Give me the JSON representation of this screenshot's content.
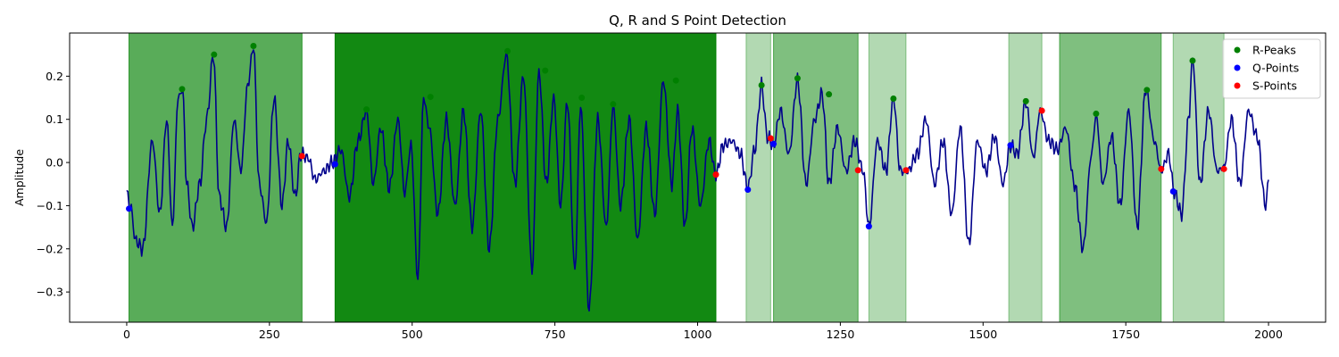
{
  "chart_data": {
    "type": "line",
    "title": "Q, R and S Point Detection",
    "xlabel": "",
    "ylabel": "Amplitude",
    "xlim": [
      -100,
      2100
    ],
    "ylim": [
      -0.37,
      0.3
    ],
    "x_ticks": [
      0,
      250,
      500,
      750,
      1000,
      1250,
      1500,
      1750,
      2000
    ],
    "y_ticks": [
      -0.3,
      -0.2,
      -0.1,
      0.0,
      0.1,
      0.2
    ],
    "y_tick_labels": [
      "−0.3",
      "−0.2",
      "−0.1",
      "0.0",
      "0.1",
      "0.2"
    ],
    "grid": false,
    "legend_position": "top-right",
    "colors": {
      "signal": "#00008b",
      "r_peaks": "#008000",
      "q_points": "#0000ff",
      "s_points": "#ff0000",
      "shade": "#008000"
    },
    "legend": [
      {
        "label": "R-Peaks",
        "color": "#008000"
      },
      {
        "label": "Q-Points",
        "color": "#0000ff"
      },
      {
        "label": "S-Points",
        "color": "#ff0000"
      }
    ],
    "shaded_regions": [
      {
        "x0": 4,
        "x1": 307,
        "opacity": 0.65
      },
      {
        "x0": 365,
        "x1": 1032,
        "opacity": 0.93
      },
      {
        "x0": 1085,
        "x1": 1128,
        "opacity": 0.3
      },
      {
        "x0": 1133,
        "x1": 1281,
        "opacity": 0.5
      },
      {
        "x0": 1300,
        "x1": 1365,
        "opacity": 0.3
      },
      {
        "x0": 1545,
        "x1": 1603,
        "opacity": 0.3
      },
      {
        "x0": 1634,
        "x1": 1812,
        "opacity": 0.5
      },
      {
        "x0": 1833,
        "x1": 1922,
        "opacity": 0.3
      }
    ],
    "signal_anchors": {
      "x": [
        0,
        8,
        15,
        28,
        45,
        58,
        70,
        80,
        90,
        98,
        105,
        115,
        128,
        140,
        152,
        162,
        175,
        188,
        200,
        212,
        222,
        232,
        245,
        258,
        272,
        283,
        295,
        305,
        318,
        330,
        345,
        360,
        375,
        390,
        405,
        420,
        432,
        445,
        460,
        475,
        487,
        498,
        510,
        520,
        530,
        545,
        560,
        575,
        590,
        605,
        620,
        635,
        650,
        665,
        680,
        695,
        710,
        722,
        735,
        748,
        760,
        772,
        785,
        795,
        810,
        825,
        840,
        852,
        865,
        880,
        895,
        910,
        925,
        940,
        955,
        965,
        978,
        990,
        1005,
        1020,
        1032,
        1045,
        1060,
        1075,
        1088,
        1100,
        1112,
        1122,
        1133,
        1145,
        1160,
        1175,
        1190,
        1205,
        1218,
        1230,
        1245,
        1260,
        1275,
        1290,
        1300,
        1315,
        1330,
        1343,
        1355,
        1368,
        1385,
        1400,
        1415,
        1430,
        1445,
        1460,
        1475,
        1490,
        1505,
        1520,
        1535,
        1548,
        1560,
        1575,
        1588,
        1600,
        1615,
        1630,
        1645,
        1660,
        1675,
        1690,
        1698,
        1710,
        1725,
        1740,
        1755,
        1770,
        1785,
        1800,
        1812,
        1825,
        1835,
        1848,
        1860,
        1867,
        1880,
        1895,
        1910,
        1922,
        1935,
        1950,
        1965,
        1980,
        1995,
        2000
      ],
      "y": [
        -0.07,
        -0.11,
        -0.18,
        -0.2,
        0.05,
        -0.12,
        0.1,
        -0.15,
        0.15,
        0.17,
        -0.05,
        -0.15,
        -0.05,
        0.1,
        0.25,
        -0.08,
        -0.15,
        0.1,
        -0.02,
        0.18,
        0.27,
        -0.05,
        -0.14,
        0.15,
        -0.1,
        0.05,
        -0.08,
        0.02,
        0.01,
        -0.04,
        -0.02,
        0.0,
        0.03,
        -0.08,
        0.05,
        0.12,
        -0.05,
        0.08,
        -0.06,
        0.1,
        -0.07,
        0.04,
        -0.27,
        0.15,
        0.08,
        -0.12,
        0.1,
        -0.1,
        0.12,
        -0.15,
        0.12,
        -0.2,
        0.1,
        0.25,
        -0.05,
        0.2,
        -0.25,
        0.21,
        -0.05,
        0.15,
        -0.1,
        0.14,
        -0.25,
        0.13,
        -0.34,
        0.1,
        -0.15,
        0.13,
        -0.1,
        0.1,
        -0.18,
        0.08,
        -0.12,
        0.19,
        -0.05,
        0.12,
        -0.15,
        0.08,
        -0.1,
        0.05,
        -0.03,
        0.04,
        0.05,
        0.02,
        -0.06,
        0.03,
        0.18,
        0.06,
        0.04,
        0.12,
        0.02,
        0.19,
        -0.05,
        0.1,
        0.16,
        -0.05,
        0.08,
        -0.02,
        0.05,
        -0.02,
        -0.15,
        0.05,
        -0.02,
        0.15,
        -0.02,
        -0.02,
        0.02,
        0.1,
        -0.05,
        0.05,
        -0.12,
        0.08,
        -0.19,
        0.05,
        -0.02,
        0.06,
        -0.05,
        0.04,
        0.02,
        0.14,
        0.01,
        0.12,
        0.05,
        0.03,
        0.08,
        -0.05,
        -0.2,
        0.02,
        0.11,
        -0.05,
        0.06,
        -0.1,
        0.12,
        -0.15,
        0.17,
        0.05,
        -0.02,
        0.02,
        -0.07,
        -0.12,
        0.1,
        0.24,
        -0.05,
        0.12,
        -0.02,
        -0.01,
        0.1,
        -0.05,
        0.12,
        0.06,
        -0.1,
        -0.04
      ]
    },
    "series": [
      {
        "name": "R-Peaks",
        "color": "#008000",
        "points": [
          [
            97,
            0.17
          ],
          [
            153,
            0.25
          ],
          [
            222,
            0.27
          ],
          [
            420,
            0.123
          ],
          [
            532,
            0.152
          ],
          [
            667,
            0.258
          ],
          [
            733,
            0.213
          ],
          [
            797,
            0.15
          ],
          [
            852,
            0.135
          ],
          [
            962,
            0.19
          ],
          [
            1112,
            0.179
          ],
          [
            1175,
            0.195
          ],
          [
            1230,
            0.158
          ],
          [
            1343,
            0.148
          ],
          [
            1575,
            0.142
          ],
          [
            1698,
            0.113
          ],
          [
            1787,
            0.168
          ],
          [
            1867,
            0.236
          ]
        ]
      },
      {
        "name": "Q-Points",
        "color": "#0000ff",
        "points": [
          [
            4,
            -0.107
          ],
          [
            365,
            -0.004
          ],
          [
            1088,
            -0.063
          ],
          [
            1133,
            0.043
          ],
          [
            1300,
            -0.148
          ],
          [
            1548,
            0.04
          ],
          [
            1833,
            -0.067
          ]
        ]
      },
      {
        "name": "S-Points",
        "color": "#ff0000",
        "points": [
          [
            307,
            0.015
          ],
          [
            1032,
            -0.028
          ],
          [
            1128,
            0.056
          ],
          [
            1281,
            -0.018
          ],
          [
            1365,
            -0.018
          ],
          [
            1603,
            0.12
          ],
          [
            1812,
            -0.015
          ],
          [
            1922,
            -0.015
          ]
        ]
      }
    ]
  }
}
